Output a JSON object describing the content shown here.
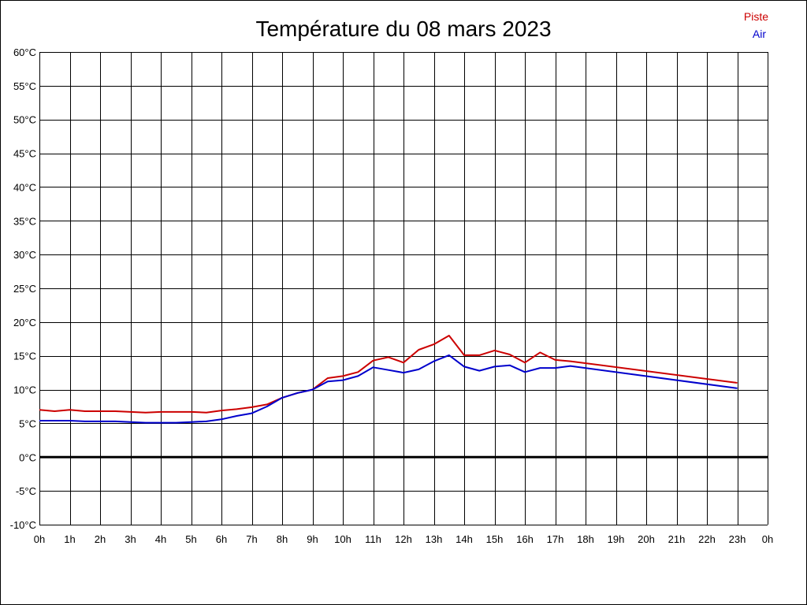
{
  "chart_data": {
    "type": "line",
    "title": "Température du 08 mars 2023",
    "x_tick_labels": [
      "0h",
      "1h",
      "2h",
      "3h",
      "4h",
      "5h",
      "6h",
      "7h",
      "8h",
      "9h",
      "10h",
      "11h",
      "12h",
      "13h",
      "14h",
      "15h",
      "16h",
      "17h",
      "18h",
      "19h",
      "20h",
      "21h",
      "22h",
      "23h",
      "0h"
    ],
    "y_tick_labels": [
      "60°C",
      "55°C",
      "50°C",
      "45°C",
      "40°C",
      "35°C",
      "30°C",
      "25°C",
      "20°C",
      "15°C",
      "10°C",
      "5°C",
      "0°C",
      "-5°C",
      "-10°C"
    ],
    "xlim": [
      0,
      24
    ],
    "ylim": [
      -10,
      60
    ],
    "x_grid_step": 1,
    "y_grid_step": 5,
    "grid": true,
    "zero_line": true,
    "legend_position": "top-right",
    "series": [
      {
        "name": "Piste",
        "color": "#cc0000",
        "x": [
          0,
          0.5,
          1,
          1.5,
          2,
          2.5,
          3,
          3.5,
          4,
          4.5,
          5,
          5.5,
          6,
          6.5,
          7,
          7.5,
          8,
          8.5,
          9,
          9.5,
          10,
          10.5,
          11,
          11.5,
          12,
          12.5,
          13,
          13.5,
          14,
          14.5,
          15,
          15.5,
          16,
          16.5,
          17,
          17.5,
          23
        ],
        "y": [
          7.0,
          6.8,
          7.0,
          6.8,
          6.8,
          6.8,
          6.7,
          6.6,
          6.7,
          6.7,
          6.7,
          6.6,
          6.9,
          7.1,
          7.4,
          7.8,
          8.8,
          9.5,
          10.0,
          11.7,
          12.0,
          12.6,
          14.3,
          14.8,
          14.0,
          15.9,
          16.7,
          18.0,
          15.1,
          15.1,
          15.8,
          15.2,
          14.0,
          15.5,
          14.4,
          14.2,
          11.0
        ]
      },
      {
        "name": "Air",
        "color": "#0000cc",
        "x": [
          0,
          0.5,
          1,
          1.5,
          2,
          2.5,
          3,
          3.5,
          4,
          4.5,
          5,
          5.5,
          6,
          6.5,
          7,
          7.5,
          8,
          8.5,
          9,
          9.5,
          10,
          10.5,
          11,
          11.5,
          12,
          12.5,
          13,
          13.5,
          14,
          14.5,
          15,
          15.5,
          16,
          16.5,
          17,
          17.5,
          23
        ],
        "y": [
          5.4,
          5.4,
          5.4,
          5.3,
          5.3,
          5.3,
          5.2,
          5.1,
          5.1,
          5.1,
          5.2,
          5.3,
          5.6,
          6.1,
          6.5,
          7.5,
          8.8,
          9.5,
          10.0,
          11.2,
          11.4,
          12.0,
          13.3,
          12.9,
          12.5,
          13.0,
          14.2,
          15.1,
          13.4,
          12.8,
          13.4,
          13.6,
          12.6,
          13.2,
          13.2,
          13.5,
          10.2
        ]
      }
    ]
  }
}
